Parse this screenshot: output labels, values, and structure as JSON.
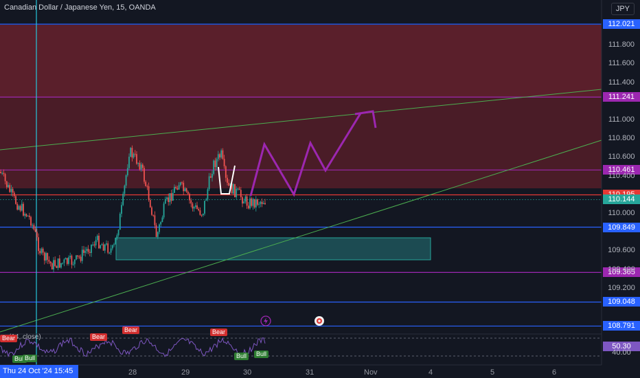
{
  "header": {
    "symbol_title": "Canadian Dollar / Japanese Yen, 15, OANDA",
    "currency": "JPY"
  },
  "price_axis": {
    "ticks": [
      "111.800",
      "111.600",
      "111.400",
      "111.000",
      "110.800",
      "110.600",
      "110.400",
      "110.000",
      "109.600",
      "109.400",
      "109.200"
    ],
    "labels": [
      {
        "text": "112.021",
        "color": "#2962ff",
        "price": 112.021
      },
      {
        "text": "111.241",
        "color": "#9c27b0",
        "price": 111.241
      },
      {
        "text": "110.461",
        "color": "#9c27b0",
        "price": 110.461
      },
      {
        "text": "110.195",
        "color": "#e53935",
        "price": 110.195
      },
      {
        "text": "110.144",
        "color": "#26a69a",
        "price": 110.144
      },
      {
        "text": "109.849",
        "color": "#2962ff",
        "price": 109.849
      },
      {
        "text": "109.365",
        "color": "#9c27b0",
        "price": 109.365
      },
      {
        "text": "109.048",
        "color": "#2962ff",
        "price": 109.048
      },
      {
        "text": "108.791",
        "color": "#2962ff",
        "price": 108.791
      }
    ]
  },
  "rsi": {
    "label": "(14, close)",
    "value": "50.30",
    "tick": "40.00",
    "badges": [
      {
        "text": "Bear",
        "kind": "bear"
      },
      {
        "text": "Bear",
        "kind": "bear"
      },
      {
        "text": "Bear",
        "kind": "bear"
      },
      {
        "text": "Bear",
        "kind": "bear"
      },
      {
        "text": "Bull",
        "kind": "bull"
      },
      {
        "text": "Bull",
        "kind": "bull"
      },
      {
        "text": "Bull",
        "kind": "bull"
      },
      {
        "text": "Bull",
        "kind": "bull"
      }
    ]
  },
  "time_axis": {
    "labels": [
      "28",
      "29",
      "30",
      "31",
      "Nov",
      "4",
      "5",
      "6"
    ],
    "crosshair_label": "Thu 24 Oct '24   15:45"
  },
  "colors": {
    "bg": "#131722",
    "up": "#26a69a",
    "down": "#ef5350",
    "zone": "#5d1f2a",
    "box": "#26a69a",
    "drawing": "#9c27b0",
    "trend": "#4caf50"
  },
  "icons": [
    "lightning-icon",
    "record-icon"
  ]
}
